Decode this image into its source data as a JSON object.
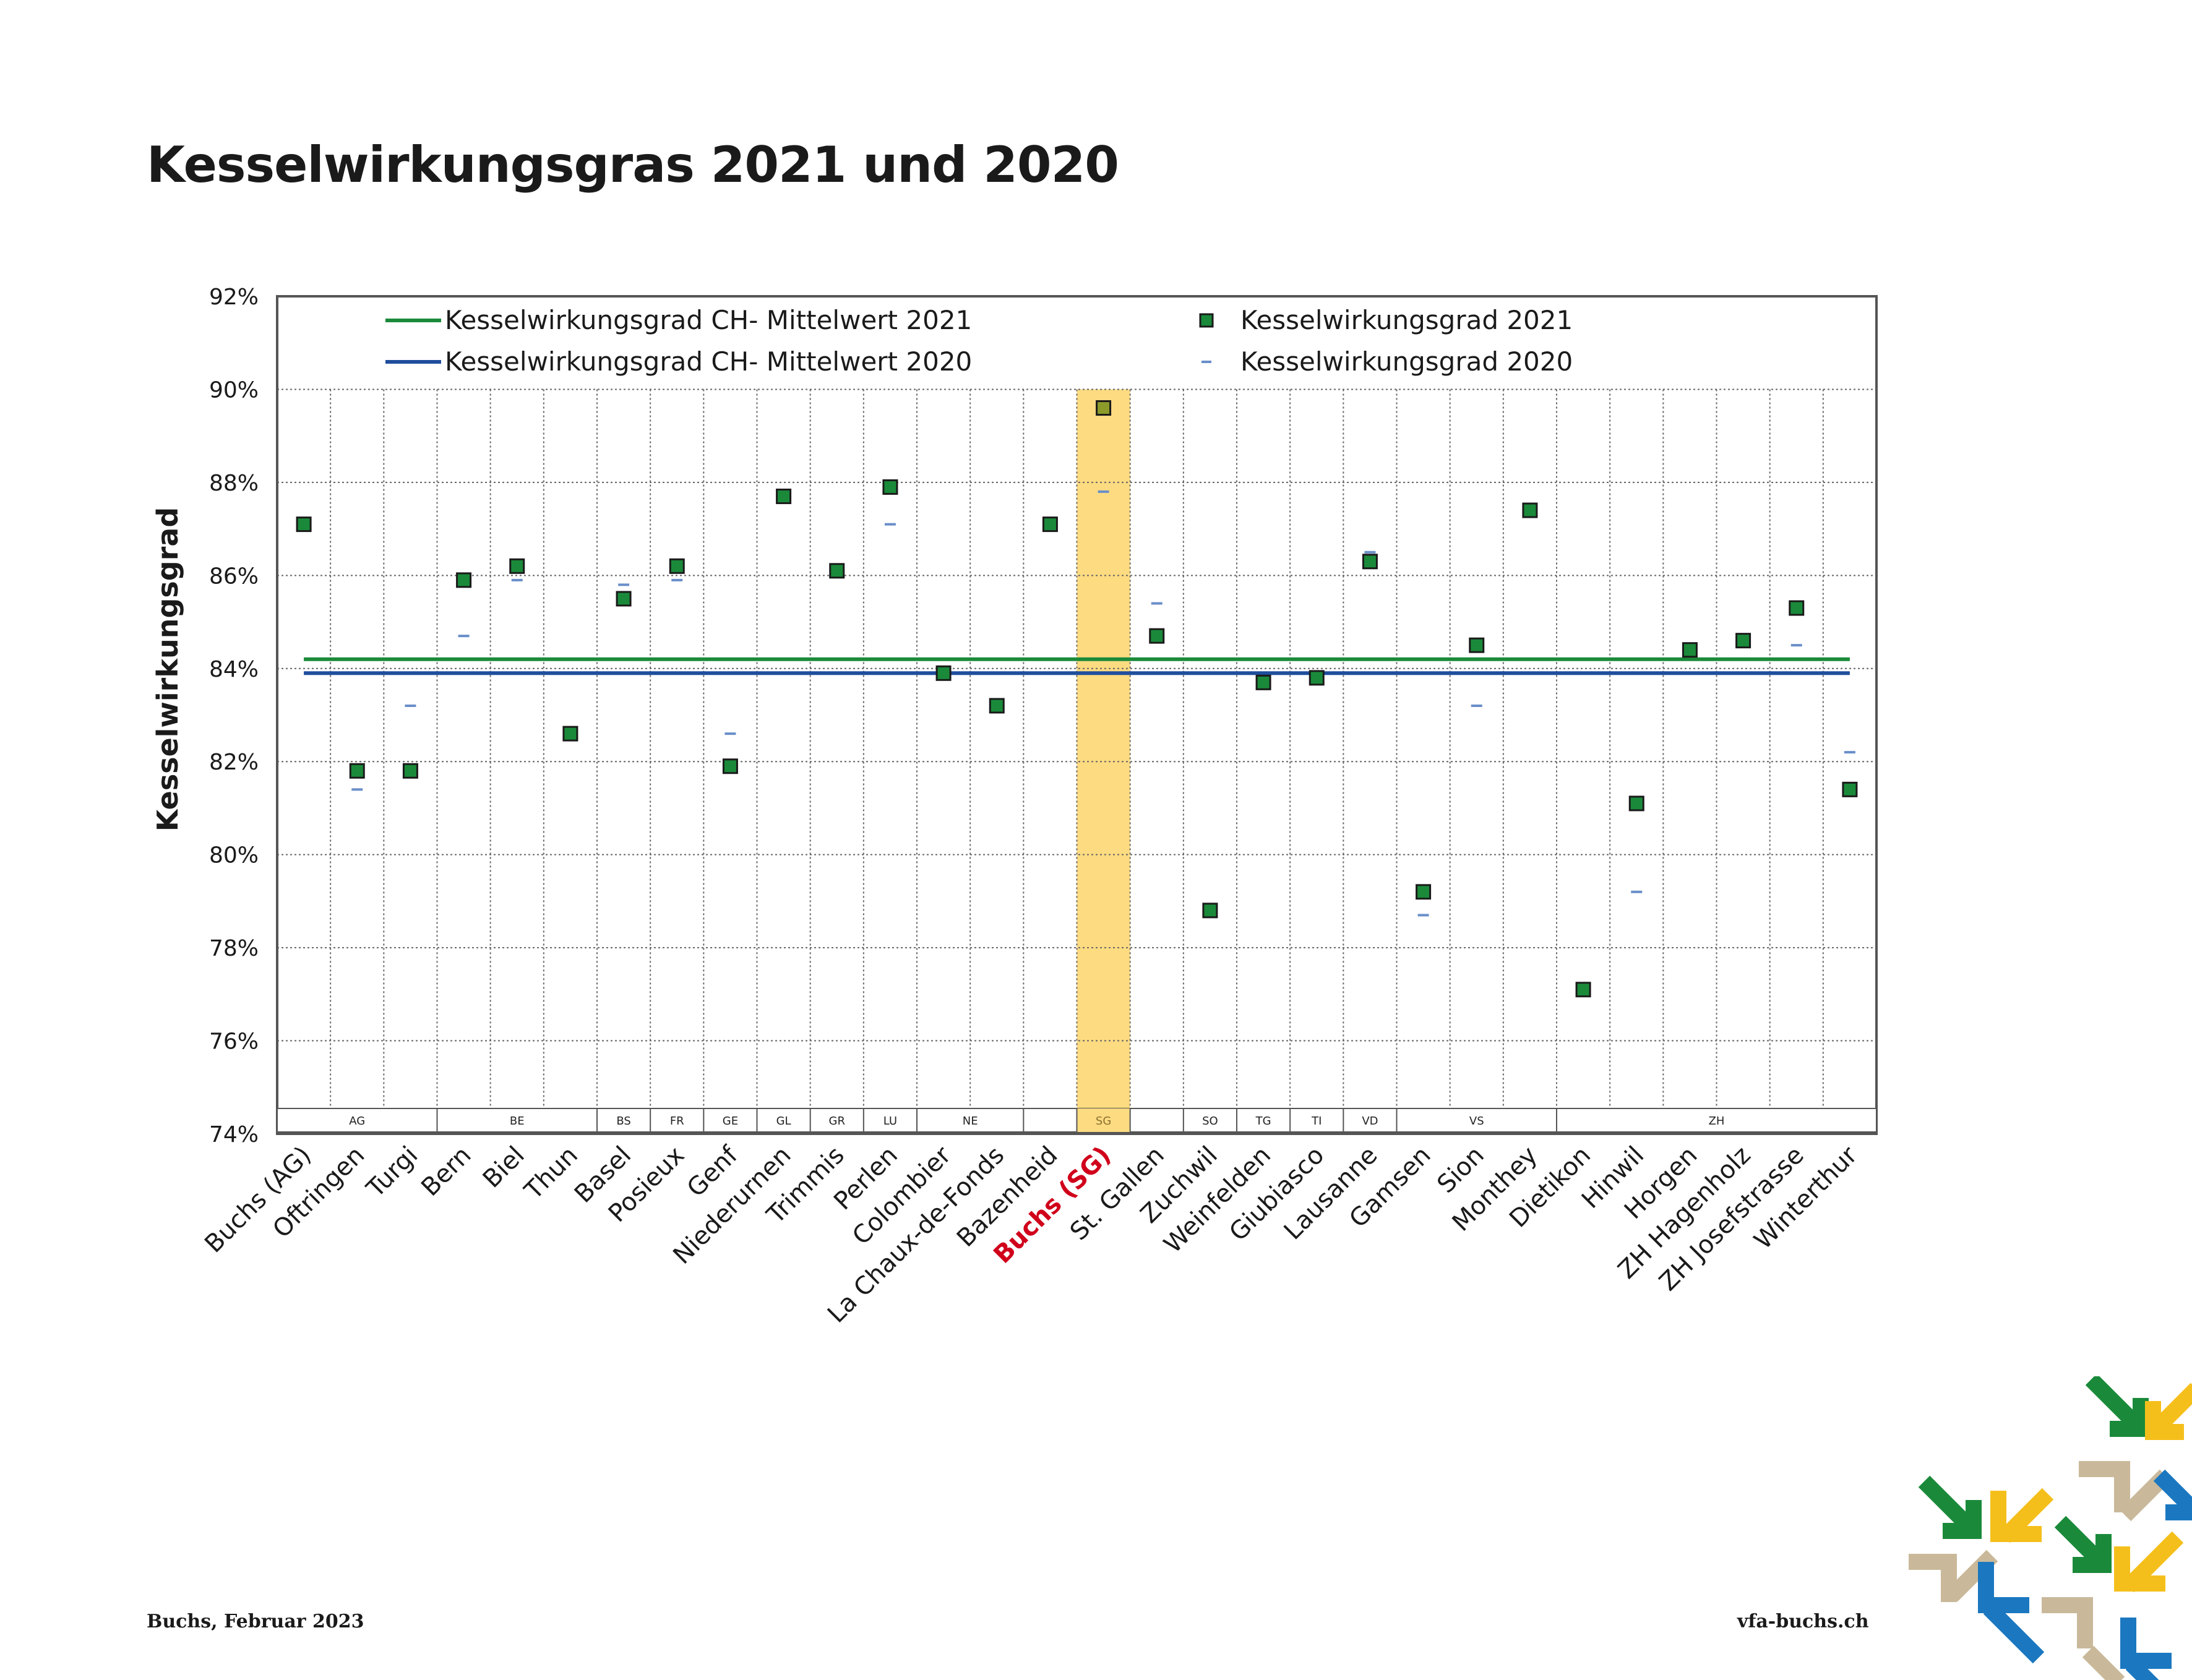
{
  "page": {
    "title": "Kesselwirkungsgras 2021 und 2020",
    "footer_left": "Buchs, Februar 2023",
    "footer_right": "vfa-buchs.ch"
  },
  "colors": {
    "avg2021": "#1a8a3a",
    "avg2020": "#1f4e9c",
    "marker2021": "#1a8a3a",
    "marker2020": "#6a8fc9",
    "highlight": "#fddb81",
    "highlight_label": "#d0021b"
  },
  "chart_data": {
    "type": "scatter",
    "title": "",
    "ylabel": "Kesselwirkungsgrad",
    "xlabel": "",
    "ylim": [
      74,
      92
    ],
    "y_ticks": [
      "74%",
      "76%",
      "78%",
      "80%",
      "82%",
      "84%",
      "86%",
      "88%",
      "90%",
      "92%"
    ],
    "grid": true,
    "legend_position": "top",
    "legend": [
      {
        "label": "Kesselwirkungsgrad CH- Mittelwert 2021",
        "kind": "line",
        "series": "avg2021"
      },
      {
        "label": "Kesselwirkungsgrad CH- Mittelwert 2020",
        "kind": "line",
        "series": "avg2020"
      },
      {
        "label": "Kesselwirkungsgrad 2021",
        "kind": "square",
        "series": "y2021"
      },
      {
        "label": "Kesselwirkungsgrad 2020",
        "kind": "dash",
        "series": "y2020"
      }
    ],
    "categories": [
      "Buchs (AG)",
      "Oftringen",
      "Turgi",
      "Bern",
      "Biel",
      "Thun",
      "Basel",
      "Posieux",
      "Genf",
      "Niederurnen",
      "Trimmis",
      "Perlen",
      "Colombier",
      "La Chaux-de-Fonds",
      "Bazenheid",
      "Buchs (SG)",
      "St. Gallen",
      "Zuchwil",
      "Weinfelden",
      "Giubiasco",
      "Lausanne",
      "Gamsen",
      "Sion",
      "Monthey",
      "Dietikon",
      "Hinwil",
      "Horgen",
      "ZH Hagenholz",
      "ZH Josefstrasse",
      "Winterthur"
    ],
    "highlight_category": "Buchs (SG)",
    "series": [
      {
        "name": "Kesselwirkungsgrad 2021",
        "key": "y2021",
        "values": [
          87.1,
          81.8,
          81.8,
          85.9,
          86.2,
          82.6,
          85.5,
          86.2,
          81.9,
          87.7,
          86.1,
          87.9,
          83.9,
          83.2,
          87.1,
          89.6,
          84.7,
          78.8,
          83.7,
          83.8,
          86.3,
          79.2,
          84.5,
          87.4,
          77.1,
          81.1,
          84.4,
          84.6,
          85.3,
          81.4
        ]
      },
      {
        "name": "Kesselwirkungsgrad 2020",
        "key": "y2020",
        "values": [
          null,
          81.4,
          83.2,
          84.7,
          85.9,
          null,
          85.8,
          85.9,
          82.6,
          null,
          null,
          87.1,
          null,
          null,
          null,
          87.8,
          85.4,
          null,
          null,
          null,
          86.5,
          78.7,
          83.2,
          null,
          null,
          79.2,
          null,
          null,
          84.5,
          82.2
        ]
      },
      {
        "name": "Kesselwirkungsgrad CH- Mittelwert 2021",
        "key": "avg2021",
        "values": [
          84.2
        ]
      },
      {
        "name": "Kesselwirkungsgrad CH- Mittelwert 2020",
        "key": "avg2020",
        "values": [
          83.9
        ]
      }
    ],
    "cantons": [
      {
        "label": "AG",
        "from": 0,
        "to": 2
      },
      {
        "label": "BE",
        "from": 3,
        "to": 5
      },
      {
        "label": "BS",
        "from": 6,
        "to": 6
      },
      {
        "label": "FR",
        "from": 7,
        "to": 7
      },
      {
        "label": "GE",
        "from": 8,
        "to": 8
      },
      {
        "label": "GL",
        "from": 9,
        "to": 9
      },
      {
        "label": "GR",
        "from": 10,
        "to": 10
      },
      {
        "label": "LU",
        "from": 11,
        "to": 11
      },
      {
        "label": "NE",
        "from": 12,
        "to": 13
      },
      {
        "label": "",
        "from": 14,
        "to": 14
      },
      {
        "label": "SG",
        "from": 15,
        "to": 15
      },
      {
        "label": "",
        "from": 16,
        "to": 16
      },
      {
        "label": "SO",
        "from": 17,
        "to": 17
      },
      {
        "label": "TG",
        "from": 18,
        "to": 18
      },
      {
        "label": "TI",
        "from": 19,
        "to": 19
      },
      {
        "label": "VD",
        "from": 20,
        "to": 20
      },
      {
        "label": "VS",
        "from": 21,
        "to": 23
      },
      {
        "label": "ZH",
        "from": 24,
        "to": 29
      }
    ]
  }
}
